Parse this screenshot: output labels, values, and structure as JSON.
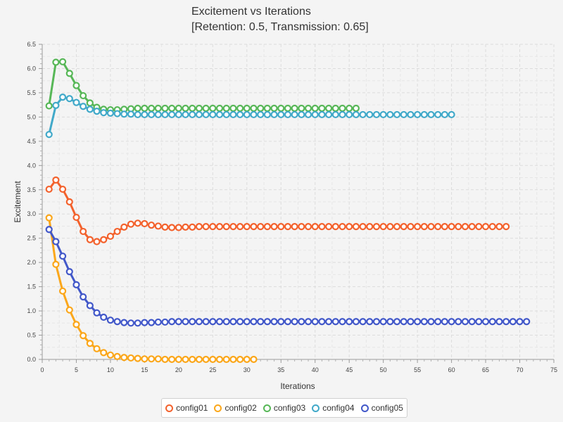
{
  "chart_data": {
    "type": "line",
    "title": "Excitement vs Iterations",
    "subtitle": "[Retention: 0.5, Transmission: 0.65]",
    "xlabel": "Iterations",
    "ylabel": "Excitement",
    "xlim": [
      0,
      75
    ],
    "ylim": [
      0,
      6.5
    ],
    "xticks": [
      "0",
      "5",
      "10",
      "15",
      "20",
      "25",
      "30",
      "35",
      "40",
      "45",
      "50",
      "55",
      "60",
      "65",
      "70",
      "75"
    ],
    "yticks": [
      "0.0",
      "0.5",
      "1.0",
      "1.5",
      "2.0",
      "2.5",
      "3.0",
      "3.5",
      "4.0",
      "4.5",
      "5.0",
      "5.5",
      "6.0",
      "6.5"
    ],
    "grid": true,
    "legend_position": "bottom",
    "series": [
      {
        "name": "config01",
        "color": "#f3622d",
        "x_start": 1,
        "values": [
          3.51,
          3.7,
          3.51,
          3.25,
          2.93,
          2.64,
          2.47,
          2.43,
          2.47,
          2.54,
          2.64,
          2.73,
          2.79,
          2.81,
          2.8,
          2.77,
          2.75,
          2.73,
          2.72,
          2.72,
          2.73,
          2.73,
          2.74,
          2.74,
          2.74,
          2.74,
          2.74,
          2.74,
          2.74,
          2.74,
          2.74,
          2.74,
          2.74,
          2.74,
          2.74,
          2.74,
          2.74,
          2.74,
          2.74,
          2.74,
          2.74,
          2.74,
          2.74,
          2.74,
          2.74,
          2.74,
          2.74,
          2.74,
          2.74,
          2.74,
          2.74,
          2.74,
          2.74,
          2.74,
          2.74,
          2.74,
          2.74,
          2.74,
          2.74,
          2.74,
          2.74,
          2.74,
          2.74,
          2.74,
          2.74,
          2.74,
          2.74,
          2.74
        ]
      },
      {
        "name": "config02",
        "color": "#fba71b",
        "x_start": 1,
        "values": [
          2.92,
          1.96,
          1.41,
          1.02,
          0.72,
          0.49,
          0.33,
          0.22,
          0.14,
          0.09,
          0.06,
          0.04,
          0.03,
          0.02,
          0.01,
          0.01,
          0.01,
          0.0,
          0.0,
          0.0,
          0.0,
          0.0,
          0.0,
          0.0,
          0.0,
          0.0,
          0.0,
          0.0,
          0.0,
          0.0,
          0.0
        ]
      },
      {
        "name": "config03",
        "color": "#57b757",
        "x_start": 1,
        "values": [
          5.23,
          6.13,
          6.14,
          5.9,
          5.65,
          5.44,
          5.29,
          5.2,
          5.16,
          5.15,
          5.15,
          5.16,
          5.17,
          5.18,
          5.18,
          5.18,
          5.18,
          5.18,
          5.18,
          5.18,
          5.18,
          5.18,
          5.18,
          5.18,
          5.18,
          5.18,
          5.18,
          5.18,
          5.18,
          5.18,
          5.18,
          5.18,
          5.18,
          5.18,
          5.18,
          5.18,
          5.18,
          5.18,
          5.18,
          5.18,
          5.18,
          5.18,
          5.18,
          5.18,
          5.18,
          5.18
        ]
      },
      {
        "name": "config04",
        "color": "#41a9c9",
        "x_start": 1,
        "values": [
          4.64,
          5.24,
          5.41,
          5.38,
          5.3,
          5.22,
          5.16,
          5.12,
          5.09,
          5.08,
          5.07,
          5.06,
          5.06,
          5.05,
          5.05,
          5.05,
          5.05,
          5.05,
          5.05,
          5.05,
          5.05,
          5.05,
          5.05,
          5.05,
          5.05,
          5.05,
          5.05,
          5.05,
          5.05,
          5.05,
          5.05,
          5.05,
          5.05,
          5.05,
          5.05,
          5.05,
          5.05,
          5.05,
          5.05,
          5.05,
          5.05,
          5.05,
          5.05,
          5.05,
          5.05,
          5.05,
          5.05,
          5.05,
          5.05,
          5.05,
          5.05,
          5.05,
          5.05,
          5.05,
          5.05,
          5.05,
          5.05,
          5.05,
          5.05,
          5.05
        ]
      },
      {
        "name": "config05",
        "color": "#4258c9",
        "x_start": 1,
        "values": [
          2.68,
          2.43,
          2.13,
          1.81,
          1.54,
          1.29,
          1.11,
          0.96,
          0.87,
          0.81,
          0.78,
          0.76,
          0.75,
          0.75,
          0.76,
          0.76,
          0.77,
          0.77,
          0.78,
          0.78,
          0.78,
          0.78,
          0.78,
          0.78,
          0.78,
          0.78,
          0.78,
          0.78,
          0.78,
          0.78,
          0.78,
          0.78,
          0.78,
          0.78,
          0.78,
          0.78,
          0.78,
          0.78,
          0.78,
          0.78,
          0.78,
          0.78,
          0.78,
          0.78,
          0.78,
          0.78,
          0.78,
          0.78,
          0.78,
          0.78,
          0.78,
          0.78,
          0.78,
          0.78,
          0.78,
          0.78,
          0.78,
          0.78,
          0.78,
          0.78,
          0.78,
          0.78,
          0.78,
          0.78,
          0.78,
          0.78,
          0.78,
          0.78,
          0.78,
          0.78,
          0.78
        ]
      }
    ]
  }
}
